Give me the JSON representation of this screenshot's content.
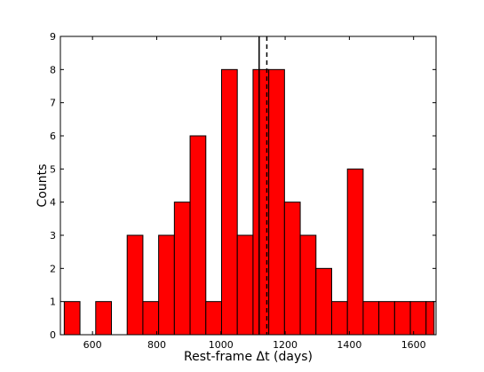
{
  "chart_data": {
    "type": "bar",
    "title": "",
    "xlabel": "Rest-frame Δt (days)",
    "ylabel": "Counts",
    "xlim": [
      500,
      1670
    ],
    "ylim": [
      0,
      9
    ],
    "x_ticks": [
      600,
      800,
      1000,
      1200,
      1400,
      1600
    ],
    "y_ticks": [
      0,
      1,
      2,
      3,
      4,
      5,
      6,
      7,
      8,
      9
    ],
    "bar_color": "#ff0000",
    "edge_color": "#000000",
    "bins": [
      {
        "start": 512,
        "end": 561,
        "count": 1
      },
      {
        "start": 610,
        "end": 659,
        "count": 1
      },
      {
        "start": 708,
        "end": 757,
        "count": 3
      },
      {
        "start": 757,
        "end": 806,
        "count": 1
      },
      {
        "start": 806,
        "end": 855,
        "count": 3
      },
      {
        "start": 855,
        "end": 904,
        "count": 4
      },
      {
        "start": 904,
        "end": 953,
        "count": 6
      },
      {
        "start": 953,
        "end": 1002,
        "count": 1
      },
      {
        "start": 1002,
        "end": 1051,
        "count": 8
      },
      {
        "start": 1051,
        "end": 1100,
        "count": 3
      },
      {
        "start": 1100,
        "end": 1149,
        "count": 8
      },
      {
        "start": 1149,
        "end": 1198,
        "count": 8
      },
      {
        "start": 1198,
        "end": 1247,
        "count": 4
      },
      {
        "start": 1247,
        "end": 1296,
        "count": 3
      },
      {
        "start": 1296,
        "end": 1345,
        "count": 2
      },
      {
        "start": 1345,
        "end": 1394,
        "count": 1
      },
      {
        "start": 1394,
        "end": 1443,
        "count": 5
      },
      {
        "start": 1443,
        "end": 1492,
        "count": 1
      },
      {
        "start": 1492,
        "end": 1541,
        "count": 1
      },
      {
        "start": 1541,
        "end": 1590,
        "count": 1
      },
      {
        "start": 1590,
        "end": 1639,
        "count": 1
      },
      {
        "start": 1639,
        "end": 1664,
        "count": 1
      }
    ],
    "vertical_lines": [
      {
        "x": 1119,
        "style": "solid"
      },
      {
        "x": 1143,
        "style": "dashed"
      }
    ],
    "grid": false
  }
}
